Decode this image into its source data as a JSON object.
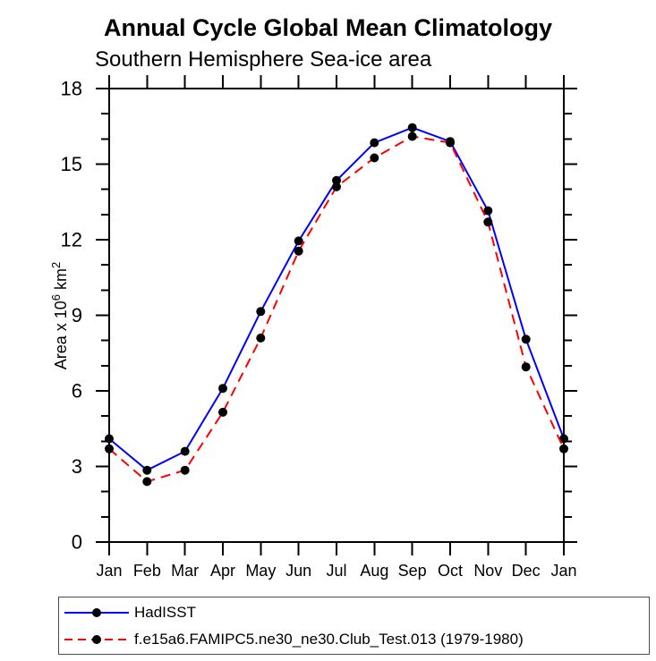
{
  "chart_data": {
    "type": "line",
    "title": "Annual Cycle Global Mean Climatology",
    "subtitle": "Southern Hemisphere Sea-ice area",
    "ylabel": "Area x 10^6 km^2",
    "ylabel_parts": {
      "base": "Area x 10",
      "sup1": "6",
      "mid": " km",
      "sup2": "2"
    },
    "x_tick_labels": [
      "Jan",
      "Feb",
      "Mar",
      "Apr",
      "May",
      "Jun",
      "Jul",
      "Aug",
      "Sep",
      "Oct",
      "Nov",
      "Dec",
      "Jan"
    ],
    "ylim": [
      0,
      18
    ],
    "y_major_ticks": [
      0,
      3,
      6,
      9,
      12,
      15,
      18
    ],
    "y_minor_step": 1,
    "grid": false,
    "legend_position": "bottom-left",
    "frame_color": "#000000",
    "marker": "filled-circle",
    "marker_color": "#000000",
    "series": [
      {
        "name": "HadISST",
        "color": "#0000ff",
        "line_style": "solid",
        "values": [
          4.1,
          2.85,
          3.6,
          6.1,
          9.15,
          11.95,
          14.35,
          15.85,
          16.45,
          15.9,
          13.15,
          8.05,
          4.1
        ]
      },
      {
        "name": "f.e15a6.FAMIPC5.ne30_ne30.Club_Test.013 (1979-1980)",
        "color": "#ff0000",
        "line_style": "dashed",
        "values": [
          3.7,
          2.4,
          2.85,
          5.15,
          8.1,
          11.55,
          14.1,
          15.25,
          16.1,
          15.85,
          12.7,
          6.95,
          3.7
        ]
      }
    ]
  }
}
